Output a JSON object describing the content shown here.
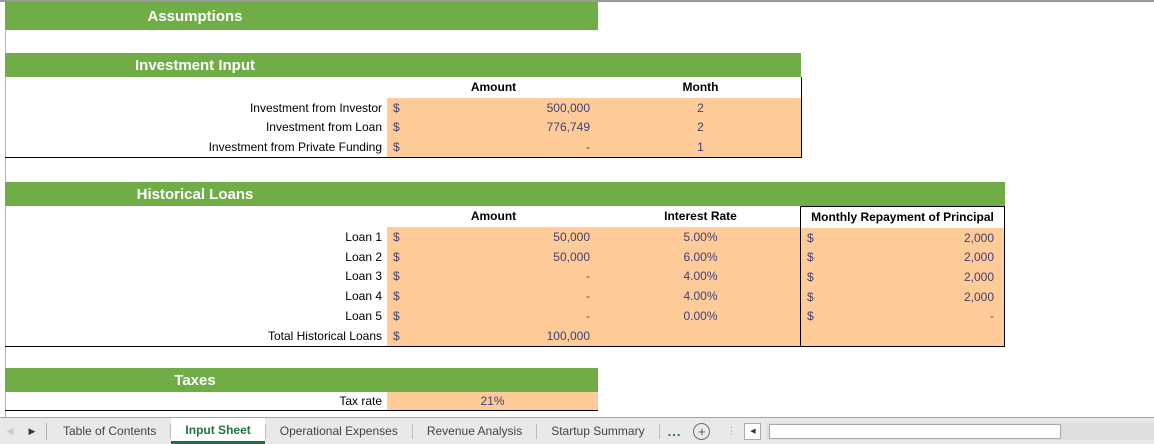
{
  "colors": {
    "section_green": "#70AD47",
    "input_fill": "#FFCC99",
    "input_text": "#3F3F76",
    "active_tab_green": "#217346"
  },
  "sections": {
    "assumptions": {
      "title": "Assumptions"
    },
    "investment": {
      "title": "Investment Input",
      "col_amount": "Amount",
      "col_month": "Month",
      "rows": [
        {
          "label": "Investment from Investor",
          "currency": "$",
          "amount": "500,000",
          "month": "2"
        },
        {
          "label": "Investment from Loan",
          "currency": "$",
          "amount": "776,749",
          "month": "2"
        },
        {
          "label": "Investment from Private Funding",
          "currency": "$",
          "amount": "-",
          "month": "1"
        }
      ]
    },
    "historical": {
      "title": "Historical Loans",
      "col_amount": "Amount",
      "col_interest": "Interest Rate",
      "col_repayment": "Monthly Repayment of Principal",
      "rows": [
        {
          "label": "Loan 1",
          "currency": "$",
          "amount": "50,000",
          "interest": "5.00%",
          "repay_currency": "$",
          "repayment": "2,000"
        },
        {
          "label": "Loan 2",
          "currency": "$",
          "amount": "50,000",
          "interest": "6.00%",
          "repay_currency": "$",
          "repayment": "2,000"
        },
        {
          "label": "Loan 3",
          "currency": "$",
          "amount": "-",
          "interest": "4.00%",
          "repay_currency": "$",
          "repayment": "2,000"
        },
        {
          "label": "Loan 4",
          "currency": "$",
          "amount": "-",
          "interest": "4.00%",
          "repay_currency": "$",
          "repayment": "2,000"
        },
        {
          "label": "Loan 5",
          "currency": "$",
          "amount": "-",
          "interest": "0.00%",
          "repay_currency": "$",
          "repayment": "-"
        }
      ],
      "total": {
        "label": "Total Historical Loans",
        "currency": "$",
        "amount": "100,000"
      }
    },
    "taxes": {
      "title": "Taxes",
      "row_label": "Tax rate",
      "value": "21%"
    }
  },
  "tabbar": {
    "nav_prev_glyph": "◀",
    "nav_next_glyph": "▶",
    "tabs": [
      {
        "label": "Table of Contents",
        "name": "tab-table-of-contents",
        "active": false
      },
      {
        "label": "Input Sheet",
        "name": "tab-input-sheet",
        "active": true
      },
      {
        "label": "Operational Expenses",
        "name": "tab-operational-expenses",
        "active": false
      },
      {
        "label": "Revenue Analysis",
        "name": "tab-revenue-analysis",
        "active": false
      },
      {
        "label": "Startup Summary",
        "name": "tab-startup-summary",
        "active": false
      }
    ],
    "more_glyph": "...",
    "add_glyph": "+",
    "dots_glyph": "⋮",
    "scroll_left_glyph": "◀"
  }
}
